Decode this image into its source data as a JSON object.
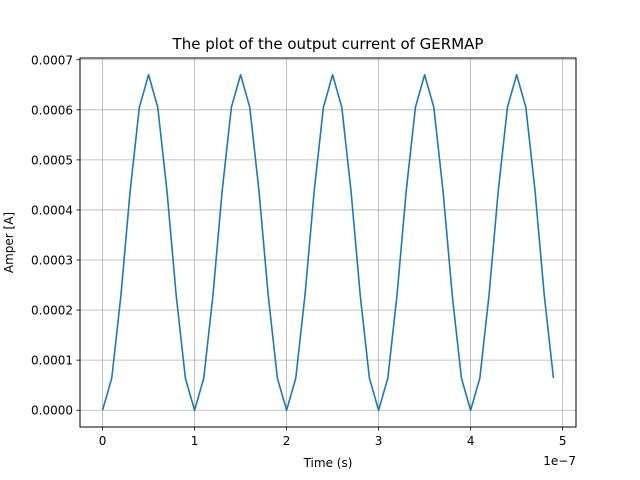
{
  "chart_data": {
    "type": "line",
    "title": "The plot of the output current of GERMAP",
    "xlabel": "Time (s)",
    "ylabel": "Amper [A]",
    "x_offset_label": "1e−7",
    "xlim": [
      -2.45e-08,
      5.145e-07
    ],
    "ylim": [
      -3.35e-05,
      0.0007035
    ],
    "grid": true,
    "x_ticks": [
      {
        "value": 0,
        "label": "0"
      },
      {
        "value": 1e-07,
        "label": "1"
      },
      {
        "value": 2e-07,
        "label": "2"
      },
      {
        "value": 3e-07,
        "label": "3"
      },
      {
        "value": 4e-07,
        "label": "4"
      },
      {
        "value": 5e-07,
        "label": "5"
      }
    ],
    "y_ticks": [
      {
        "value": 0,
        "label": "0.0000"
      },
      {
        "value": 0.0001,
        "label": "0.0001"
      },
      {
        "value": 0.0002,
        "label": "0.0002"
      },
      {
        "value": 0.0003,
        "label": "0.0003"
      },
      {
        "value": 0.0004,
        "label": "0.0004"
      },
      {
        "value": 0.0005,
        "label": "0.0005"
      },
      {
        "value": 0.0006,
        "label": "0.0006"
      },
      {
        "value": 0.0007,
        "label": "0.0007"
      }
    ],
    "series": [
      {
        "color": "#1f77b4",
        "x": [
          0,
          1e-08,
          2e-08,
          3e-08,
          4e-08,
          5e-08,
          6e-08,
          7e-08,
          8e-08,
          9e-08,
          1e-07,
          1.1e-07,
          1.2e-07,
          1.3e-07,
          1.4e-07,
          1.5e-07,
          1.6e-07,
          1.7e-07,
          1.8e-07,
          1.9e-07,
          2e-07,
          2.1e-07,
          2.2e-07,
          2.3e-07,
          2.4e-07,
          2.5e-07,
          2.6e-07,
          2.7e-07,
          2.8e-07,
          2.9e-07,
          3e-07,
          3.1e-07,
          3.2e-07,
          3.3e-07,
          3.4e-07,
          3.5e-07,
          3.6e-07,
          3.7e-07,
          3.8e-07,
          3.9e-07,
          4e-07,
          4.1e-07,
          4.2e-07,
          4.3e-07,
          4.4e-07,
          4.5e-07,
          4.6e-07,
          4.7e-07,
          4.8e-07,
          4.9e-07
        ],
        "y": [
          0,
          6.4e-05,
          0.00023,
          0.000438,
          0.000605,
          0.00067,
          0.000605,
          0.000438,
          0.00023,
          6.4e-05,
          0,
          6.4e-05,
          0.00023,
          0.000438,
          0.000605,
          0.00067,
          0.000605,
          0.000438,
          0.00023,
          6.4e-05,
          0,
          6.4e-05,
          0.00023,
          0.000438,
          0.000605,
          0.00067,
          0.000605,
          0.000438,
          0.00023,
          6.4e-05,
          0,
          6.4e-05,
          0.00023,
          0.000438,
          0.000605,
          0.00067,
          0.000605,
          0.000438,
          0.00023,
          6.4e-05,
          0,
          6.4e-05,
          0.00023,
          0.000438,
          0.000605,
          0.00067,
          0.000605,
          0.000438,
          0.00023,
          6.4e-05
        ]
      }
    ]
  }
}
